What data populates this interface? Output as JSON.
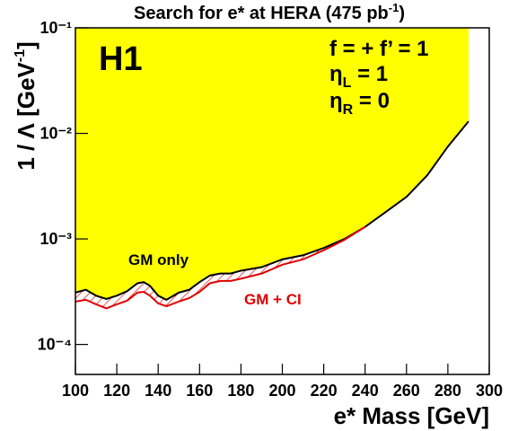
{
  "chart_data": {
    "type": "exclusion",
    "title": {
      "text": "Search for e* at HERA (475 pb",
      "sup": "-1",
      "end": ")"
    },
    "x_label": "e* Mass [GeV]",
    "y_label": {
      "text": "1 / Λ [GeV",
      "sup": "-1",
      "end": "]"
    },
    "experiment": "H1",
    "annotations": [
      {
        "base": "f = + f’ = 1",
        "sub": "",
        "tail": ""
      },
      {
        "base": "η",
        "sub": "L",
        "tail": " = 1"
      },
      {
        "base": "η",
        "sub": "R",
        "tail": " = 0"
      }
    ],
    "x": [
      100,
      105,
      110,
      115,
      120,
      125,
      130,
      133,
      136,
      140,
      144,
      150,
      155,
      160,
      165,
      170,
      175,
      180,
      190,
      200,
      210,
      220,
      230,
      240,
      250,
      260,
      270,
      280,
      290
    ],
    "series": [
      {
        "name": "GM only",
        "color": "#000000",
        "fill": "#ffff00",
        "values": [
          0.00031,
          0.00033,
          0.00029,
          0.00027,
          0.00029,
          0.00032,
          0.00038,
          0.00039,
          0.00036,
          0.00029,
          0.000265,
          0.00031,
          0.00033,
          0.00039,
          0.00045,
          0.00047,
          0.00047,
          0.0005,
          0.00054,
          0.00064,
          0.0007,
          0.00082,
          0.001,
          0.0013,
          0.0018,
          0.0025,
          0.004,
          0.0075,
          0.013
        ]
      },
      {
        "name": "GM + CI",
        "color": "#e00000",
        "values": [
          0.000255,
          0.000265,
          0.00024,
          0.00022,
          0.00024,
          0.00026,
          0.00031,
          0.000315,
          0.00029,
          0.000245,
          0.00023,
          0.000255,
          0.000275,
          0.000315,
          0.00038,
          0.0004,
          0.0004,
          0.00042,
          0.00047,
          0.00057,
          0.00064,
          0.00078,
          0.00098,
          0.0013,
          null,
          null,
          null,
          null,
          null
        ]
      }
    ],
    "xlim": [
      100,
      300
    ],
    "xticks": [
      100,
      120,
      140,
      160,
      180,
      200,
      220,
      240,
      260,
      280,
      300
    ],
    "ylim": [
      5.2e-05,
      0.1
    ],
    "yticks": [
      {
        "value": 0.0001,
        "label": "10⁻⁴"
      },
      {
        "value": 0.001,
        "label": "10⁻³"
      },
      {
        "value": 0.01,
        "label": "10⁻²"
      },
      {
        "value": 0.1,
        "label": "10⁻¹"
      }
    ],
    "log_y": true
  }
}
